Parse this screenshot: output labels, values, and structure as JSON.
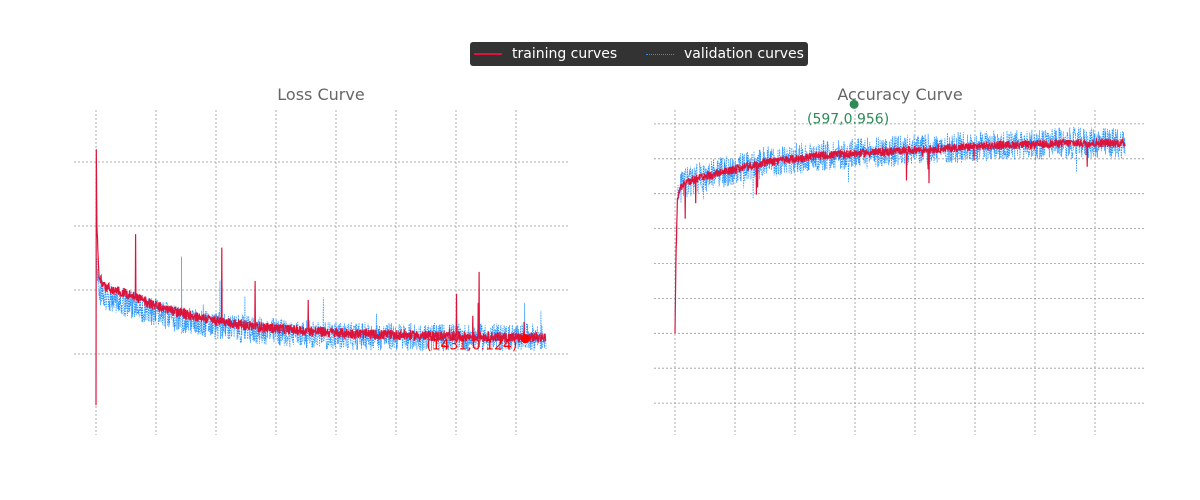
{
  "legend": {
    "training_label": "training curves",
    "validation_label": "validation curves",
    "training_color": "#dc143c",
    "validation_color": "#1e90ff"
  },
  "chart_data": [
    {
      "type": "line",
      "title": "Loss Curve",
      "xlabel": "",
      "ylabel": "",
      "grid": true,
      "legend_position": "top-center",
      "xlim": [
        0,
        1500
      ],
      "ylim": [
        0.0,
        0.45
      ],
      "x_gridlines": [
        0,
        200,
        400,
        600,
        800,
        1000,
        1200,
        1400
      ],
      "y_gridlines": [
        0.1,
        0.2,
        0.3,
        0.4
      ],
      "series": [
        {
          "name": "training curves",
          "color": "#dc143c",
          "style": "solid",
          "x": [
            0,
            1,
            3,
            10,
            30,
            60,
            100,
            150,
            200,
            250,
            300,
            350,
            400,
            450,
            500,
            550,
            600,
            650,
            700,
            750,
            800,
            850,
            900,
            950,
            1000,
            1050,
            1100,
            1150,
            1200,
            1250,
            1300,
            1350,
            1400,
            1450,
            1500
          ],
          "y": [
            0.02,
            0.42,
            0.3,
            0.22,
            0.205,
            0.2,
            0.195,
            0.185,
            0.175,
            0.168,
            0.162,
            0.157,
            0.152,
            0.148,
            0.145,
            0.142,
            0.14,
            0.138,
            0.136,
            0.135,
            0.133,
            0.132,
            0.131,
            0.13,
            0.13,
            0.129,
            0.128,
            0.128,
            0.127,
            0.127,
            0.127,
            0.126,
            0.126,
            0.126,
            0.126
          ]
        },
        {
          "name": "validation curves",
          "color": "#1e90ff",
          "style": "dotted",
          "x": [
            0,
            3,
            10,
            30,
            60,
            100,
            150,
            200,
            250,
            300,
            350,
            400,
            450,
            500,
            550,
            600,
            650,
            700,
            750,
            800,
            850,
            900,
            950,
            1000,
            1050,
            1100,
            1150,
            1200,
            1250,
            1300,
            1350,
            1400,
            1450,
            1500
          ],
          "y": [
            0.2,
            0.25,
            0.2,
            0.19,
            0.185,
            0.18,
            0.172,
            0.165,
            0.158,
            0.152,
            0.148,
            0.144,
            0.141,
            0.138,
            0.136,
            0.134,
            0.132,
            0.131,
            0.13,
            0.129,
            0.128,
            0.128,
            0.127,
            0.127,
            0.127,
            0.126,
            0.126,
            0.126,
            0.126,
            0.126,
            0.126,
            0.126,
            0.126,
            0.126
          ]
        }
      ],
      "annotation": {
        "label": "(1431,0.124)",
        "x": 1431,
        "y": 0.124,
        "color": "#ff0000"
      }
    },
    {
      "type": "line",
      "title": "Accuracy Curve",
      "xlabel": "",
      "ylabel": "",
      "grid": true,
      "xlim": [
        0,
        1500
      ],
      "ylim": [
        0.0,
        1.0
      ],
      "x_gridlines": [
        0,
        200,
        400,
        600,
        800,
        1000,
        1200,
        1400
      ],
      "y_gridlines": [
        0.1,
        0.2,
        0.3,
        0.4,
        0.5,
        0.6,
        0.7,
        0.8,
        0.9
      ],
      "series": [
        {
          "name": "training curves",
          "color": "#dc143c",
          "style": "solid",
          "x": [
            0,
            3,
            8,
            15,
            30,
            60,
            100,
            150,
            200,
            250,
            300,
            400,
            500,
            600,
            700,
            800,
            900,
            1000,
            1100,
            1200,
            1300,
            1400,
            1500
          ],
          "y": [
            0.3,
            0.5,
            0.68,
            0.71,
            0.73,
            0.74,
            0.75,
            0.76,
            0.77,
            0.78,
            0.79,
            0.8,
            0.81,
            0.815,
            0.82,
            0.825,
            0.83,
            0.835,
            0.84,
            0.84,
            0.845,
            0.845,
            0.845
          ]
        },
        {
          "name": "validation curves",
          "color": "#1e90ff",
          "style": "dotted",
          "x": [
            0,
            3,
            8,
            15,
            30,
            60,
            100,
            150,
            200,
            250,
            300,
            400,
            500,
            600,
            700,
            800,
            900,
            1000,
            1100,
            1200,
            1300,
            1400,
            1500
          ],
          "y": [
            0.35,
            0.55,
            0.68,
            0.71,
            0.73,
            0.74,
            0.75,
            0.76,
            0.77,
            0.78,
            0.79,
            0.8,
            0.81,
            0.815,
            0.82,
            0.825,
            0.83,
            0.835,
            0.84,
            0.84,
            0.845,
            0.845,
            0.845
          ]
        }
      ],
      "annotation": {
        "label": "(597,0.956)",
        "x": 597,
        "y": 0.956,
        "color": "#2e8b57"
      }
    }
  ]
}
